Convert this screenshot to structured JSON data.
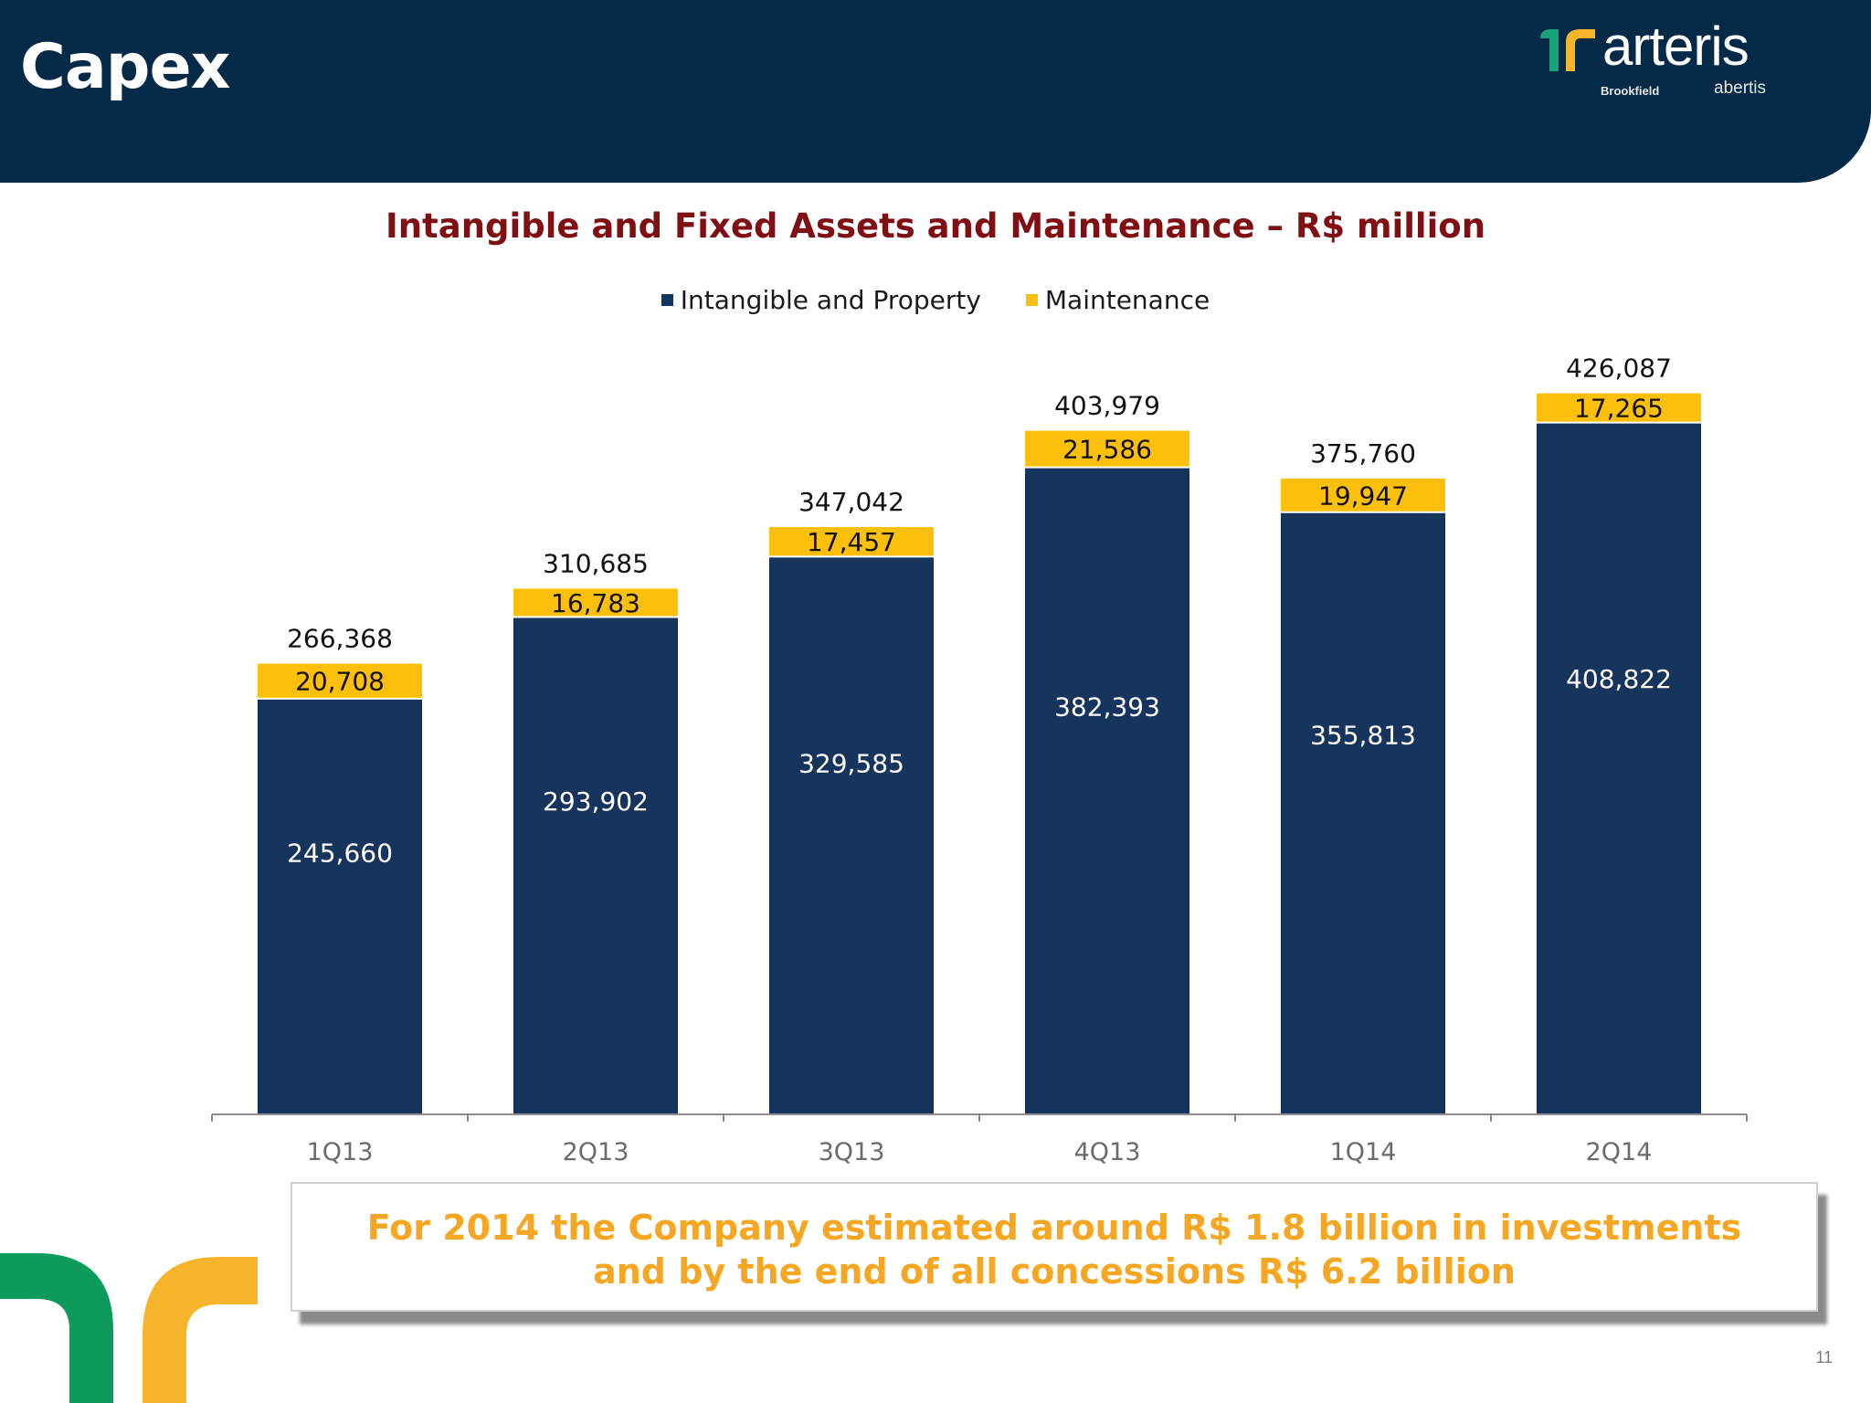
{
  "header": {
    "title": "Capex"
  },
  "logo": {
    "wordmark": "arteris",
    "sub1": "Brookfield",
    "sub2": "abertis"
  },
  "note": {
    "line1": "For 2014 the Company estimated around R$ 1.8 billion in investments",
    "line2": "and by the end of all concessions R$ 6.2 billion"
  },
  "page_number": "11",
  "colors": {
    "header_bg": "#042a47",
    "intangible": "#17345d",
    "maintenance": "#fcc00a",
    "title": "#7f0f12",
    "note_text": "#f5a623",
    "deco_green": "#0e9a5c",
    "deco_yellow": "#f7b52b"
  },
  "chart_data": {
    "type": "bar",
    "stacked": true,
    "title": "Intangible and Fixed Assets and Maintenance – R$ million",
    "categories": [
      "1Q13",
      "2Q13",
      "3Q13",
      "4Q13",
      "1Q14",
      "2Q14"
    ],
    "series": [
      {
        "name": "Intangible and Property",
        "values": [
          245660,
          293902,
          329585,
          382393,
          355813,
          408822
        ]
      },
      {
        "name": "Maintenance",
        "values": [
          20708,
          16783,
          17457,
          21586,
          19947,
          17265
        ]
      }
    ],
    "value_labels": {
      "intangible": [
        "245,660",
        "293,902",
        "329,585",
        "382,393",
        "355,813",
        "408,822"
      ],
      "maintenance": [
        "20,708",
        "16,783",
        "17,457",
        "21,586",
        "19,947",
        "17,265"
      ],
      "totals": [
        "266,368",
        "310,685",
        "347,042",
        "403,979",
        "375,760",
        "426,087"
      ]
    },
    "ylim": [
      0,
      475000
    ],
    "legend_position": "top-center",
    "grid": false
  }
}
